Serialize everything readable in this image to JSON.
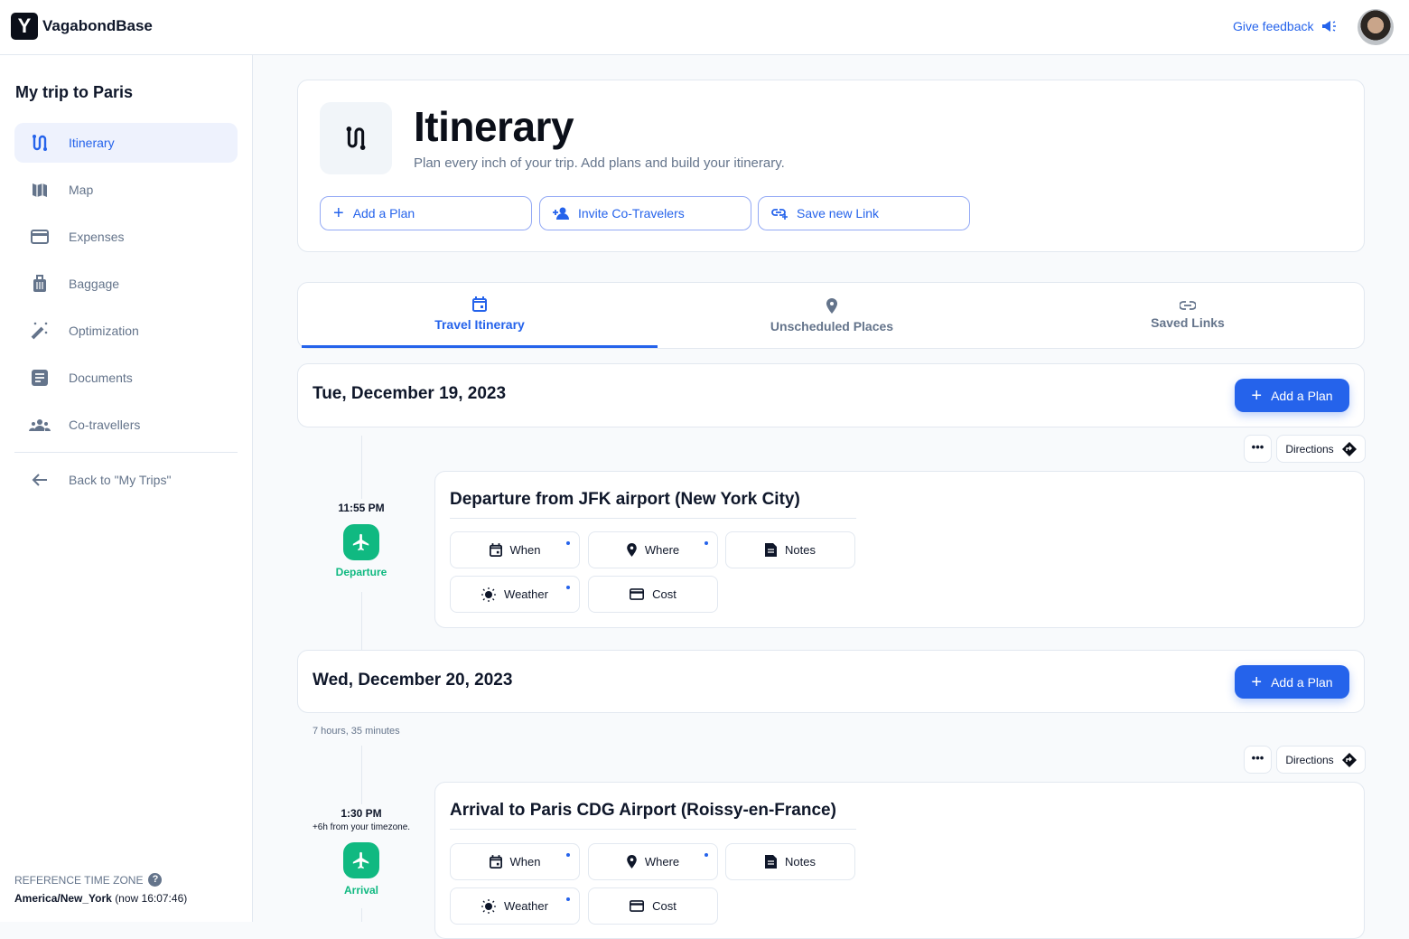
{
  "app": {
    "brand": "VagabondBase",
    "logo_letter": "Y",
    "feedback": "Give feedback"
  },
  "sidebar": {
    "trip_title": "My trip to Paris",
    "items": [
      {
        "label": "Itinerary",
        "icon": "route-icon",
        "active": true
      },
      {
        "label": "Map",
        "icon": "map-icon"
      },
      {
        "label": "Expenses",
        "icon": "credit-card-icon"
      },
      {
        "label": "Baggage",
        "icon": "luggage-icon"
      },
      {
        "label": "Optimization",
        "icon": "magic-wand-icon"
      },
      {
        "label": "Documents",
        "icon": "document-icon"
      },
      {
        "label": "Co-travellers",
        "icon": "group-icon"
      }
    ],
    "back": "Back to \"My Trips\"",
    "tz_label": "REFERENCE TIME ZONE",
    "tz_name": "America/New_York",
    "tz_now": "(now 16:07:46)"
  },
  "header": {
    "title": "Itinerary",
    "subtitle": "Plan every inch of your trip. Add plans and build your itinerary.",
    "buttons": [
      "Add a Plan",
      "Invite Co-Travelers",
      "Save new Link"
    ]
  },
  "tabs": [
    {
      "label": "Travel Itinerary",
      "active": true
    },
    {
      "label": "Unscheduled Places"
    },
    {
      "label": "Saved Links"
    }
  ],
  "days": [
    {
      "date": "Tue, December 19, 2023",
      "add": "Add a Plan"
    },
    {
      "date": "Wed, December 20, 2023",
      "add": "Add a Plan",
      "duration": "7 hours, 35 minutes"
    }
  ],
  "plans": [
    {
      "time": "11:55 PM",
      "type": "Departure",
      "title": "Departure from JFK airport (New York City)"
    },
    {
      "time": "1:30 PM",
      "tz_offset": "+6h from your timezone.",
      "type": "Arrival",
      "title": "Arrival to Paris CDG Airport (Roissy-en-France)"
    }
  ],
  "plan_actions": {
    "more": "•••",
    "directions": "Directions",
    "when": "When",
    "where": "Where",
    "notes": "Notes",
    "weather": "Weather",
    "cost": "Cost"
  },
  "colors": {
    "accent": "#2563eb",
    "success": "#10b981",
    "text": "#0f172a",
    "muted": "#64748b"
  }
}
